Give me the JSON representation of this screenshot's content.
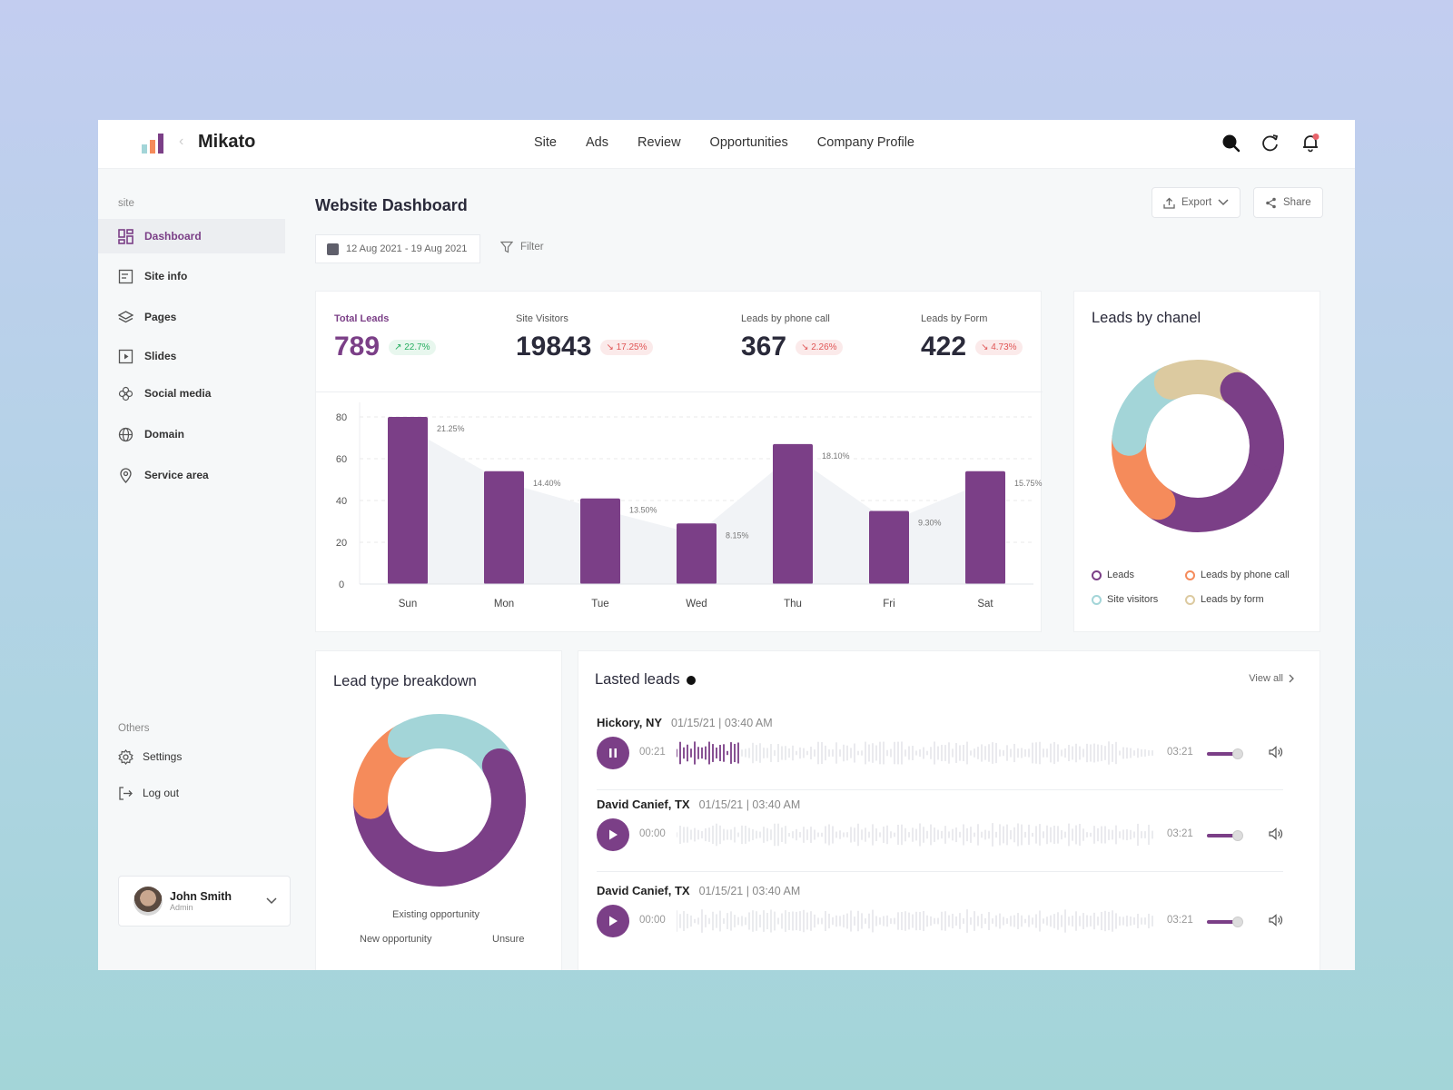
{
  "app": {
    "brand": "Mikato",
    "colors": {
      "primary": "#7b3f87",
      "orange": "#f58b5b",
      "teal": "#a3d5d8",
      "sand": "#dccaa0"
    }
  },
  "nav": {
    "items": [
      "Site",
      "Ads",
      "Review",
      "Opportunities",
      "Company Profile"
    ]
  },
  "top_icons": [
    "search-icon",
    "refresh-icon",
    "bell-icon"
  ],
  "sidebar": {
    "section_label": "site",
    "items": [
      "Dashboard",
      "Site info",
      "Pages",
      "Slides",
      "Social media",
      "Domain",
      "Service area"
    ],
    "others_label": "Others",
    "others": [
      "Settings",
      "Log out"
    ],
    "user": {
      "name": "John Smith",
      "role": "Admin"
    }
  },
  "header": {
    "title": "Website Dashboard",
    "export_label": "Export",
    "share_label": "Share",
    "date_range": "12 Aug 2021 - 19 Aug 2021",
    "filter_label": "Filter"
  },
  "stats": [
    {
      "label": "Total Leads",
      "value": "789",
      "change": "↗ 22.7%",
      "trend": "up"
    },
    {
      "label": "Site Visitors",
      "value": "19843",
      "change": "↘ 17.25%",
      "trend": "down"
    },
    {
      "label": "Leads by phone call",
      "value": "367",
      "change": "↘ 2.26%",
      "trend": "down"
    },
    {
      "label": "Leads by Form",
      "value": "422",
      "change": "↘ 4.73%",
      "trend": "down"
    }
  ],
  "chart_data": [
    {
      "type": "bar",
      "title": "",
      "categories": [
        "Sun",
        "Mon",
        "Tue",
        "Wed",
        "Thu",
        "Fri",
        "Sat"
      ],
      "values": [
        80,
        54,
        41,
        29,
        67,
        35,
        54
      ],
      "labels": [
        "21.25%",
        "14.40%",
        "13.50%",
        "8.15%",
        "18.10%",
        "9.30%",
        "15.75%"
      ],
      "yticks": [
        "80",
        "60",
        "40",
        "20",
        "0"
      ],
      "ylim": [
        0,
        80
      ],
      "xlabel": "",
      "ylabel": "",
      "grid": true
    },
    {
      "type": "pie",
      "title": "Leads by chanel",
      "categories": [
        "Leads",
        "Leads by phone call",
        "Site visitors",
        "Leads by form"
      ],
      "values": [
        50,
        17,
        17,
        16
      ],
      "colors": [
        "#7b3f87",
        "#f58b5b",
        "#a3d5d8",
        "#dccaa0"
      ]
    },
    {
      "type": "pie",
      "title": "Lead type breakdown",
      "categories": [
        "Existing opportunity",
        "New opportunity",
        "Unsure"
      ],
      "values": [
        58,
        17,
        25
      ],
      "colors": [
        "#7b3f87",
        "#f58b5b",
        "#a3d5d8"
      ]
    }
  ],
  "leads": {
    "title": "Lasted leads",
    "view_all": "View all",
    "rows": [
      {
        "name": "Hickory, NY",
        "meta": "01/15/21  |  03:40 AM",
        "current": "00:21",
        "duration": "03:21",
        "playing": true
      },
      {
        "name": "David Canief, TX",
        "meta": "01/15/21  |  03:40 AM",
        "current": "00:00",
        "duration": "03:21",
        "playing": false
      },
      {
        "name": "David Canief, TX",
        "meta": "01/15/21  |  03:40 AM",
        "current": "00:00",
        "duration": "03:21",
        "playing": false
      }
    ]
  }
}
